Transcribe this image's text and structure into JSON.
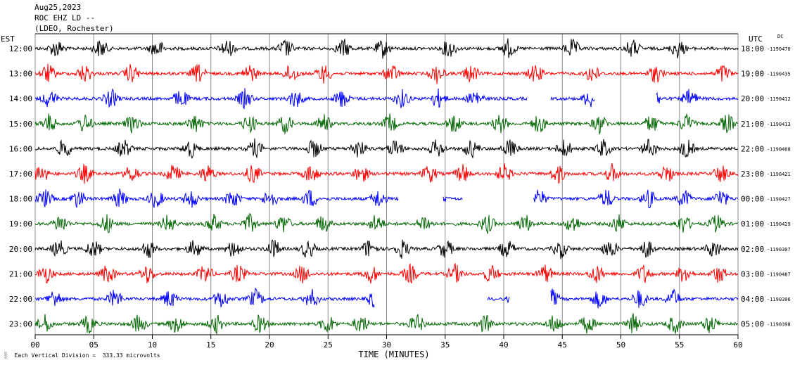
{
  "header": {
    "date": "Aug25,2023",
    "station": "ROC EHZ LD --",
    "network": "(LDEO, Rochester)"
  },
  "labels": {
    "left_tz": "EST",
    "right_tz": "UTC",
    "dc": "DC",
    "scale_note": "Each Vertical Division =  333.33 microvolts",
    "mark": "░"
  },
  "colors": {
    "trace_cycle": [
      "#000000",
      "#ff0000",
      "#0000ff",
      "#006600"
    ],
    "grid": "#888888",
    "axis": "#000000"
  },
  "chart_data": {
    "type": "line",
    "title": "ROC EHZ LD --",
    "xlabel": "TIME (MINUTES)",
    "ylabel": "",
    "xlim": [
      0,
      60
    ],
    "xticks": [
      "00",
      "05",
      "10",
      "15",
      "20",
      "25",
      "30",
      "35",
      "40",
      "45",
      "50",
      "55",
      "60"
    ],
    "grid": true,
    "series": [
      {
        "left": "12:00",
        "right": "18:00",
        "dc": "-1190470"
      },
      {
        "left": "13:00",
        "right": "19:00",
        "dc": "-1190435"
      },
      {
        "left": "14:00",
        "right": "20:00",
        "dc": "-1190412"
      },
      {
        "left": "15:00",
        "right": "21:00",
        "dc": "-1190413"
      },
      {
        "left": "16:00",
        "right": "22:00",
        "dc": "-1190408"
      },
      {
        "left": "17:00",
        "right": "23:00",
        "dc": "-1190421"
      },
      {
        "left": "18:00",
        "right": "00:00",
        "dc": "-1190427"
      },
      {
        "left": "19:00",
        "right": "01:00",
        "dc": "-1190429"
      },
      {
        "left": "20:00",
        "right": "02:00",
        "dc": "-1190307"
      },
      {
        "left": "21:00",
        "right": "03:00",
        "dc": "-1190487"
      },
      {
        "left": "22:00",
        "right": "04:00",
        "dc": "-1190396"
      },
      {
        "left": "23:00",
        "right": "05:00",
        "dc": "-1190398"
      }
    ],
    "gaps_minutes": [
      [],
      [],
      [
        [
          42.0,
          44.0
        ],
        [
          47.8,
          53.0
        ]
      ],
      [],
      [],
      [],
      [
        [
          31.0,
          34.8
        ],
        [
          36.5,
          42.5
        ]
      ],
      [],
      [],
      [],
      [
        [
          29.0,
          38.6
        ],
        [
          40.5,
          44.0
        ]
      ],
      []
    ]
  }
}
